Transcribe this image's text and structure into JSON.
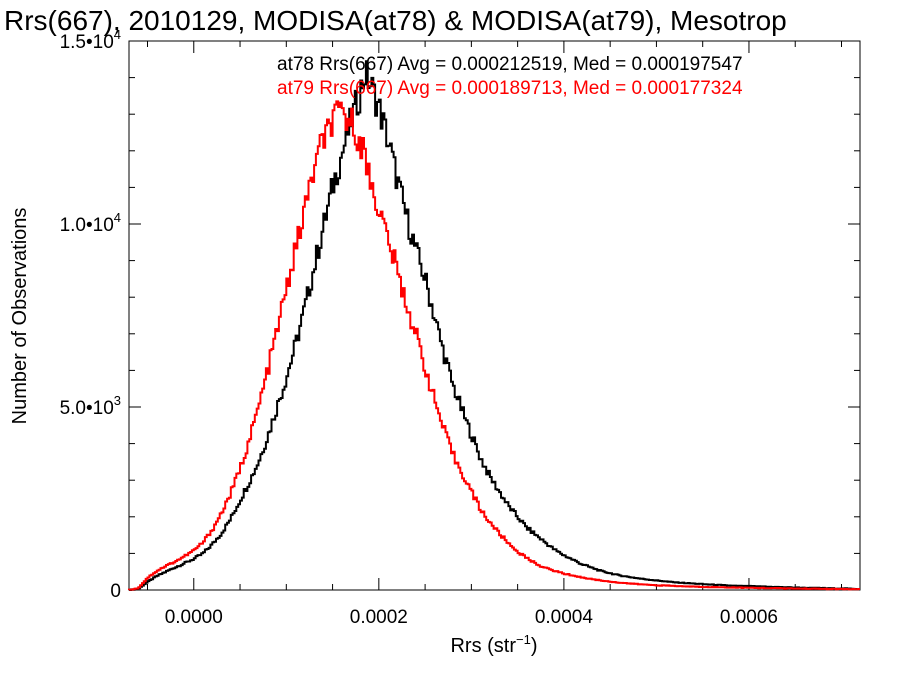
{
  "chart_data": {
    "type": "line",
    "title": "Rrs(667), 2010129, MODISA(at78) & MODISA(at79), Mesotrop",
    "xlabel": "Rrs (str",
    "xlabel_sup": "−1",
    "xlabel_end": ")",
    "ylabel": "Number of Observations",
    "xlim": [
      -7e-05,
      0.00072
    ],
    "ylim": [
      0,
      15000
    ],
    "x_ticks": [
      {
        "value": 0.0,
        "label": "0.0000"
      },
      {
        "value": 0.0002,
        "label": "0.0002"
      },
      {
        "value": 0.0004,
        "label": "0.0004"
      },
      {
        "value": 0.0006,
        "label": "0.0006"
      }
    ],
    "y_ticks": [
      {
        "value": 0,
        "mant": "0",
        "exp": ""
      },
      {
        "value": 5000,
        "mant": "5.0•10",
        "exp": "3"
      },
      {
        "value": 10000,
        "mant": "1.0•10",
        "exp": "4"
      },
      {
        "value": 15000,
        "mant": "1.5•10",
        "exp": "4"
      }
    ],
    "legend": [
      "at78 Rrs(667) Avg = 0.000212519, Med = 0.000197547",
      "at79 Rrs(667) Avg = 0.000189713, Med = 0.000177324"
    ],
    "series": [
      {
        "name": "at78",
        "color": "#000000",
        "points": [
          [
            -7e-05,
            0
          ],
          [
            -6e-05,
            30
          ],
          [
            -5e-05,
            220
          ],
          [
            -4e-05,
            380
          ],
          [
            -3e-05,
            500
          ],
          [
            -2e-05,
            620
          ],
          [
            -1e-05,
            730
          ],
          [
            0.0,
            850
          ],
          [
            1e-05,
            1000
          ],
          [
            2e-05,
            1250
          ],
          [
            3e-05,
            1550
          ],
          [
            4e-05,
            1950
          ],
          [
            5e-05,
            2450
          ],
          [
            6e-05,
            2950
          ],
          [
            7e-05,
            3500
          ],
          [
            8e-05,
            4200
          ],
          [
            9e-05,
            5000
          ],
          [
            0.0001,
            5800
          ],
          [
            0.00011,
            6700
          ],
          [
            0.00012,
            7700
          ],
          [
            0.00013,
            8800
          ],
          [
            0.00014,
            9900
          ],
          [
            0.00015,
            11000
          ],
          [
            0.00016,
            11900
          ],
          [
            0.00017,
            12800
          ],
          [
            0.00018,
            13600
          ],
          [
            0.000185,
            14100
          ],
          [
            0.00019,
            13900
          ],
          [
            0.0002,
            13200
          ],
          [
            0.00021,
            12300
          ],
          [
            0.00022,
            11200
          ],
          [
            0.00023,
            10200
          ],
          [
            0.00024,
            9300
          ],
          [
            0.00025,
            8500
          ],
          [
            0.00026,
            7500
          ],
          [
            0.00027,
            6500
          ],
          [
            0.00028,
            5600
          ],
          [
            0.00029,
            4900
          ],
          [
            0.0003,
            4250
          ],
          [
            0.00031,
            3600
          ],
          [
            0.00032,
            3100
          ],
          [
            0.00033,
            2700
          ],
          [
            0.00034,
            2300
          ],
          [
            0.00035,
            2000
          ],
          [
            0.00036,
            1700
          ],
          [
            0.00037,
            1500
          ],
          [
            0.00038,
            1300
          ],
          [
            0.00039,
            1100
          ],
          [
            0.0004,
            950
          ],
          [
            0.00042,
            700
          ],
          [
            0.00044,
            520
          ],
          [
            0.00046,
            400
          ],
          [
            0.00048,
            320
          ],
          [
            0.0005,
            260
          ],
          [
            0.00052,
            210
          ],
          [
            0.00055,
            160
          ],
          [
            0.00058,
            120
          ],
          [
            0.00062,
            90
          ],
          [
            0.00066,
            60
          ],
          [
            0.0007,
            40
          ],
          [
            0.00072,
            30
          ]
        ]
      },
      {
        "name": "at79",
        "color": "#ff0000",
        "points": [
          [
            -7e-05,
            0
          ],
          [
            -6e-05,
            50
          ],
          [
            -5e-05,
            330
          ],
          [
            -4e-05,
            520
          ],
          [
            -3e-05,
            660
          ],
          [
            -2e-05,
            780
          ],
          [
            -1e-05,
            920
          ],
          [
            0.0,
            1080
          ],
          [
            1e-05,
            1300
          ],
          [
            2e-05,
            1650
          ],
          [
            3e-05,
            2100
          ],
          [
            4e-05,
            2650
          ],
          [
            5e-05,
            3300
          ],
          [
            6e-05,
            4100
          ],
          [
            7e-05,
            5000
          ],
          [
            8e-05,
            6000
          ],
          [
            9e-05,
            7100
          ],
          [
            0.0001,
            8200
          ],
          [
            0.00011,
            9300
          ],
          [
            0.00012,
            10400
          ],
          [
            0.00013,
            11500
          ],
          [
            0.00014,
            12300
          ],
          [
            0.00015,
            12800
          ],
          [
            0.00016,
            13000
          ],
          [
            0.00017,
            12800
          ],
          [
            0.00018,
            12300
          ],
          [
            0.00019,
            11300
          ],
          [
            0.0002,
            10400
          ],
          [
            0.00021,
            9600
          ],
          [
            0.00022,
            8700
          ],
          [
            0.00023,
            7800
          ],
          [
            0.00024,
            7000
          ],
          [
            0.00025,
            6100
          ],
          [
            0.00026,
            5200
          ],
          [
            0.00027,
            4400
          ],
          [
            0.00028,
            3700
          ],
          [
            0.00029,
            3200
          ],
          [
            0.0003,
            2700
          ],
          [
            0.00031,
            2200
          ],
          [
            0.00032,
            1850
          ],
          [
            0.00033,
            1550
          ],
          [
            0.00034,
            1280
          ],
          [
            0.00035,
            1050
          ],
          [
            0.00036,
            870
          ],
          [
            0.00037,
            720
          ],
          [
            0.00038,
            600
          ],
          [
            0.0004,
            450
          ],
          [
            0.00042,
            340
          ],
          [
            0.00044,
            260
          ],
          [
            0.00046,
            200
          ],
          [
            0.00048,
            160
          ],
          [
            0.0005,
            130
          ],
          [
            0.00053,
            100
          ],
          [
            0.00056,
            80
          ],
          [
            0.0006,
            60
          ],
          [
            0.00065,
            40
          ],
          [
            0.0007,
            25
          ],
          [
            0.00072,
            20
          ]
        ]
      }
    ]
  }
}
